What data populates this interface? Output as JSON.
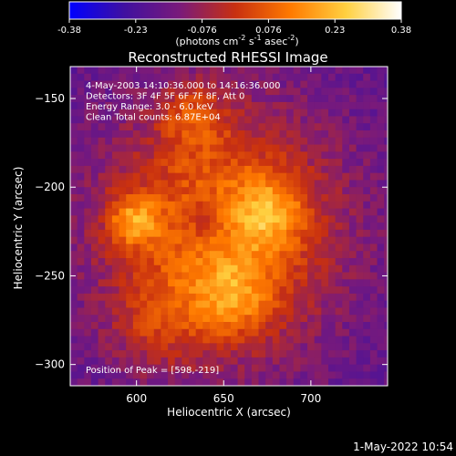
{
  "chart_data": {
    "type": "heatmap",
    "title": "Reconstructed RHESSI Image",
    "colorbar": {
      "ticks": [
        "-0.38",
        "-0.23",
        "-0.076",
        "0.076",
        "0.23",
        "0.38"
      ],
      "range": [
        -0.38,
        0.38
      ],
      "colormap": [
        "#0000ff",
        "#4010a0",
        "#7a1a7a",
        "#c83010",
        "#ff7a00",
        "#ffd040",
        "#ffffff"
      ]
    },
    "colorbar_unit": "(photons cm",
    "colorbar_unit_sup1": "-2",
    "colorbar_unit_mid": " s",
    "colorbar_unit_sup2": "-1",
    "colorbar_unit_end": " asec",
    "colorbar_unit_sup3": "-2",
    "colorbar_unit_close": ")",
    "annotations": [
      "4-May-2003 14:10:36.000 to 14:16:36.000",
      "Detectors: 3F 4F 5F 6F 7F 8F, Att 0",
      "Energy Range: 3.0 - 6.0 keV",
      "Clean     Total counts: 6.87E+04"
    ],
    "peak_label": "Position of Peak = [598,-219]",
    "peak": [
      598,
      -219
    ],
    "peak_value": 0.38,
    "xlabel": "Heliocentric X (arcsec)",
    "ylabel": "Heliocentric Y (arcsec)",
    "xlim": [
      562,
      744
    ],
    "ylim": [
      -312,
      -132
    ],
    "xticks": [
      600,
      650,
      700
    ],
    "yticks": [
      -150,
      -200,
      -250,
      -300
    ],
    "grid": false
  },
  "footer": {
    "timestamp": "1-May-2022 10:54"
  }
}
